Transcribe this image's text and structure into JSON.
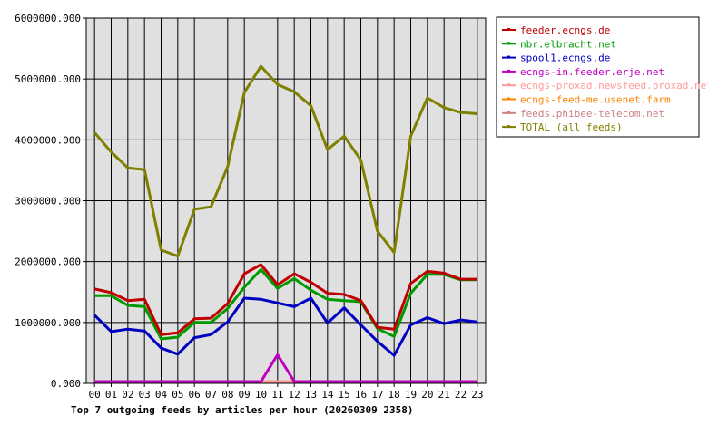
{
  "chart_data": {
    "type": "line",
    "title": "Top 7 outgoing feeds by articles per hour (20260309 2358)",
    "categories": [
      "00",
      "01",
      "02",
      "03",
      "04",
      "05",
      "06",
      "07",
      "08",
      "09",
      "10",
      "11",
      "12",
      "13",
      "14",
      "15",
      "16",
      "17",
      "18",
      "19",
      "20",
      "21",
      "22",
      "23"
    ],
    "yticks": [
      "0.000",
      "1000000.000",
      "2000000.000",
      "3000000.000",
      "4000000.000",
      "5000000.000",
      "6000000.000"
    ],
    "ylim": [
      0,
      6000000
    ],
    "grid": true,
    "legend_position": "right",
    "series": [
      {
        "name": "feeder.ecngs.de",
        "color": "#c00000",
        "values": [
          1550000,
          1490000,
          1360000,
          1380000,
          800000,
          830000,
          1060000,
          1070000,
          1310000,
          1800000,
          1950000,
          1620000,
          1800000,
          1660000,
          1480000,
          1460000,
          1360000,
          920000,
          890000,
          1640000,
          1840000,
          1810000,
          1710000,
          1710000
        ]
      },
      {
        "name": "nbr.elbracht.net",
        "color": "#009900",
        "values": [
          1440000,
          1440000,
          1280000,
          1260000,
          730000,
          760000,
          1000000,
          1000000,
          1230000,
          1580000,
          1870000,
          1560000,
          1720000,
          1530000,
          1380000,
          1360000,
          1340000,
          900000,
          770000,
          1480000,
          1790000,
          1790000,
          1700000,
          1700000
        ]
      },
      {
        "name": "spool1.ecngs.de",
        "color": "#0000c0",
        "values": [
          1120000,
          850000,
          890000,
          860000,
          580000,
          480000,
          750000,
          800000,
          1010000,
          1400000,
          1380000,
          1320000,
          1260000,
          1400000,
          990000,
          1240000,
          960000,
          690000,
          460000,
          960000,
          1080000,
          980000,
          1040000,
          1010000
        ]
      },
      {
        "name": "ecngs-in.feeder.erje.net",
        "color": "#c000c0",
        "values": [
          30000,
          30000,
          30000,
          30000,
          30000,
          30000,
          30000,
          30000,
          30000,
          30000,
          30000,
          470000,
          30000,
          30000,
          30000,
          30000,
          30000,
          30000,
          30000,
          30000,
          30000,
          30000,
          30000,
          30000
        ]
      },
      {
        "name": "ecngs-proxad.newsfeed.proxad.net",
        "color": "#ff9999",
        "values": [
          30000,
          30000,
          30000,
          30000,
          30000,
          30000,
          30000,
          30000,
          30000,
          30000,
          30000,
          30000,
          30000,
          30000,
          30000,
          30000,
          30000,
          30000,
          30000,
          30000,
          30000,
          30000,
          30000,
          30000
        ]
      },
      {
        "name": "ecngs-feed-me.usenet.farm",
        "color": "#ff8000",
        "values": [
          30000,
          30000,
          30000,
          30000,
          30000,
          30000,
          30000,
          30000,
          30000,
          30000,
          30000,
          30000,
          30000,
          30000,
          30000,
          30000,
          30000,
          30000,
          30000,
          30000,
          30000,
          30000,
          30000,
          30000
        ]
      },
      {
        "name": "feeds.phibee-telecom.net",
        "color": "#cc8080",
        "values": [
          30000,
          30000,
          30000,
          30000,
          30000,
          30000,
          30000,
          30000,
          30000,
          30000,
          30000,
          30000,
          30000,
          30000,
          30000,
          30000,
          30000,
          30000,
          30000,
          30000,
          30000,
          30000,
          30000,
          30000
        ]
      },
      {
        "name": "TOTAL (all feeds)",
        "color": "#808000",
        "values": [
          4120000,
          3800000,
          3540000,
          3510000,
          2190000,
          2090000,
          2860000,
          2900000,
          3560000,
          4780000,
          5210000,
          4910000,
          4790000,
          4560000,
          3840000,
          4060000,
          3670000,
          2500000,
          2150000,
          4060000,
          4690000,
          4530000,
          4450000,
          4430000
        ]
      }
    ]
  }
}
